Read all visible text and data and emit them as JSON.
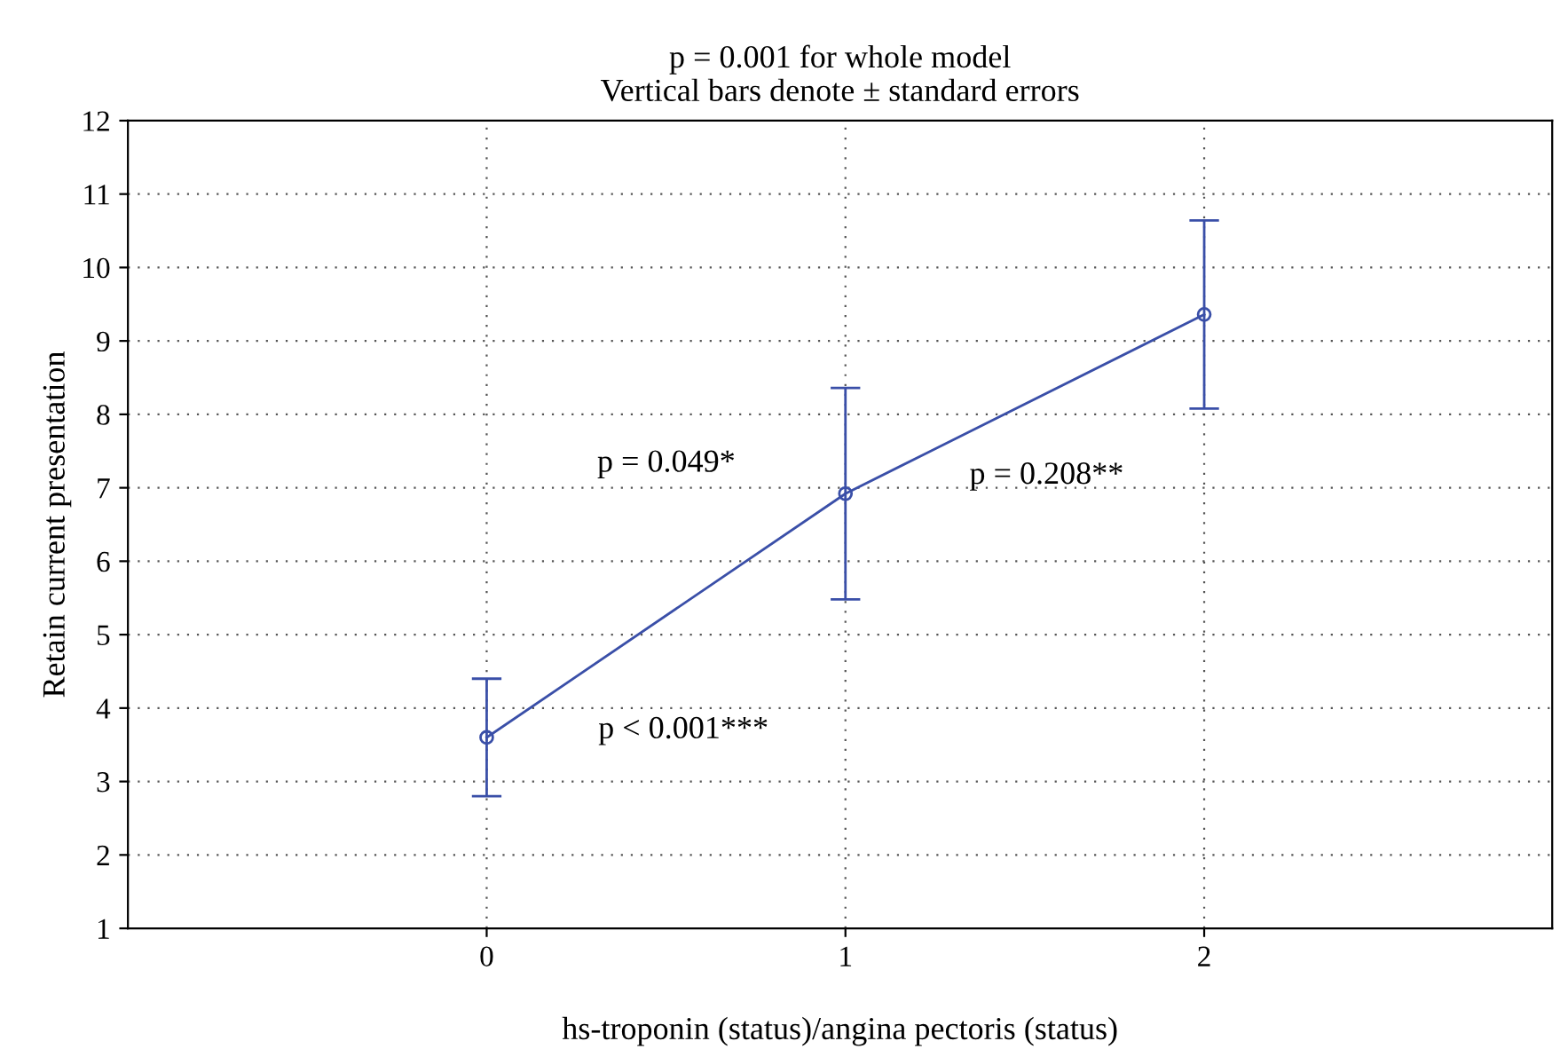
{
  "chart_data": {
    "type": "line",
    "title": "p = 0.001 for whole model",
    "subtitle": "Vertical bars denote ± standard errors",
    "xlabel": "hs-troponin (status)/angina pectoris (status)",
    "ylabel": "Retain current presentation",
    "x": [
      0,
      1,
      2
    ],
    "series": [
      {
        "color": "#3a4fa8",
        "values": [
          3.6,
          6.92,
          9.36
        ],
        "errors": [
          0.8,
          1.44,
          1.28
        ]
      }
    ],
    "xlim": [
      -1,
      2.97
    ],
    "xticks": [
      0,
      1,
      2
    ],
    "ylim": [
      1,
      12
    ],
    "yticks": [
      1,
      2,
      3,
      4,
      5,
      6,
      7,
      8,
      9,
      10,
      11,
      12
    ],
    "grid": true,
    "marker": "circle",
    "line_style": "solid",
    "legend": false,
    "annotations": [
      "p = 0.049*",
      "p = 0.208**",
      "p < 0.001***"
    ]
  }
}
